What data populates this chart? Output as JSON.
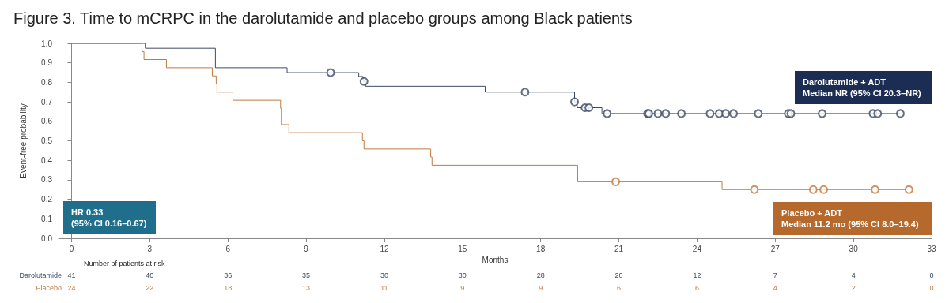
{
  "chart_data": {
    "type": "step",
    "title": "Figure 3. Time to mCRPC in the darolutamide and placebo groups among Black patients",
    "xlabel": "Months",
    "ylabel": "Event-free probability",
    "xlim": [
      -0.5,
      33
    ],
    "xticks": [
      0,
      3,
      6,
      9,
      12,
      15,
      18,
      21,
      24,
      27,
      30,
      33
    ],
    "ylim": [
      0,
      1
    ],
    "yticks": [
      {
        "value": 0,
        "label": "0.0"
      },
      {
        "value": 0.1,
        "label": "0.1"
      },
      {
        "value": 0.2,
        "label": "0.2"
      },
      {
        "value": 0.3,
        "label": "0.3"
      },
      {
        "value": 0.4,
        "label": "0.4"
      },
      {
        "value": 0.5,
        "label": "0.5"
      },
      {
        "value": 0.6,
        "label": "0.6"
      },
      {
        "value": 0.7,
        "label": "0.7"
      },
      {
        "value": 0.8,
        "label": "0.8"
      },
      {
        "value": 0.9,
        "label": "0.9"
      },
      {
        "value": 1,
        "label": "1.0"
      }
    ],
    "grid": false,
    "legend": false,
    "marker": "none",
    "series": [
      {
        "name": "Darolutamide",
        "color": "#3d4a66",
        "x": [
          0,
          2.83,
          5.52,
          8.27,
          11.02,
          11.19,
          11.28,
          15.87,
          19.3,
          19.4,
          20.35,
          31.8
        ],
        "values": [
          1,
          0.975,
          0.875,
          0.85,
          0.83,
          0.805,
          0.78,
          0.75,
          0.7,
          0.67,
          0.64,
          0.64
        ]
      },
      {
        "name": "Placebo",
        "color": "#c07a40",
        "x": [
          0,
          2.7,
          2.78,
          3.64,
          5.4,
          5.55,
          5.58,
          6.19,
          8.02,
          8.05,
          8.34,
          11.16,
          11.22,
          13.78,
          13.83,
          19.42,
          24.96,
          32.1
        ],
        "values": [
          1,
          0.958,
          0.917,
          0.875,
          0.833,
          0.792,
          0.75,
          0.708,
          0.667,
          0.583,
          0.542,
          0.5,
          0.458,
          0.417,
          0.375,
          0.29,
          0.25,
          0.25
        ]
      },
      {
        "type": "scatter",
        "marker": "circle",
        "color": "#3d4a66",
        "x": [
          9.94,
          11.22,
          17.4,
          19.3,
          19.7,
          19.85,
          20.55,
          22.1,
          22.15,
          22.5,
          22.8,
          23.4,
          24.5,
          24.85,
          25.1,
          25.4,
          26.35,
          27.5,
          27.6,
          28.8,
          30.75,
          30.93,
          31.8
        ],
        "values": [
          0.85,
          0.805,
          0.75,
          0.7,
          0.67,
          0.67,
          0.64,
          0.64,
          0.64,
          0.64,
          0.64,
          0.64,
          0.64,
          0.64,
          0.64,
          0.64,
          0.64,
          0.64,
          0.64,
          0.64,
          0.64,
          0.64,
          0.64
        ]
      },
      {
        "type": "scatter",
        "marker": "circle",
        "color": "#c07a40",
        "x": [
          20.88,
          26.2,
          28.46,
          28.86,
          30.83,
          32.13
        ],
        "values": [
          0.29,
          0.25,
          0.25,
          0.25,
          0.25,
          0.25
        ]
      }
    ],
    "annotations": [
      "Darolutamide + ADT\nMedian NR (95% CI 20.3–NR)",
      "Placebo + ADT\nMedian 11.2 mo (95% CI 8.0–19.4)",
      "HR 0.33\n(95% CI 0.16–0.67)",
      "Number of patients at risk",
      "41",
      "40",
      "36",
      "35",
      "30",
      "30",
      "28",
      "20",
      "12",
      "7",
      "4",
      "0",
      "24",
      "22",
      "18",
      "13",
      "11",
      "9",
      "9",
      "6",
      "6",
      "4",
      "2",
      "0"
    ]
  }
}
